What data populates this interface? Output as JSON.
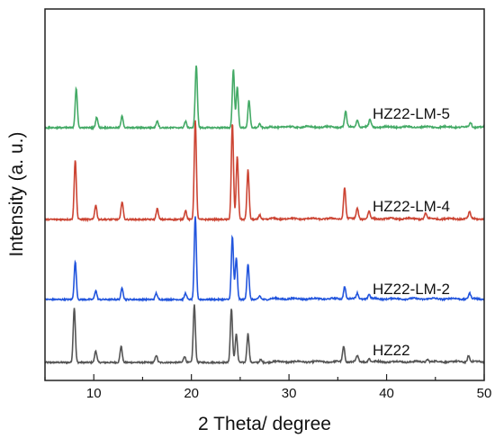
{
  "chart_data": {
    "type": "line",
    "title": "",
    "xlabel": "2 Theta/ degree",
    "ylabel": "Intensity (a. u.)",
    "xlim": [
      5,
      50
    ],
    "xticks": [
      10,
      20,
      30,
      40,
      50
    ],
    "y_tick_labels": false,
    "grid": false,
    "legend": "inline labels at right",
    "series": [
      {
        "name": "HZ22",
        "color": "#555555",
        "peaks": [
          [
            8.0,
            61
          ],
          [
            10.2,
            13
          ],
          [
            12.8,
            18
          ],
          [
            16.4,
            8
          ],
          [
            19.3,
            7
          ],
          [
            20.3,
            64
          ],
          [
            24.1,
            60
          ],
          [
            24.6,
            32
          ],
          [
            25.8,
            32
          ],
          [
            27.1,
            3
          ],
          [
            35.6,
            17
          ],
          [
            37.0,
            6
          ],
          [
            38.2,
            4
          ],
          [
            44.2,
            3
          ],
          [
            48.4,
            7
          ]
        ]
      },
      {
        "name": "HZ22-LM-2",
        "color": "#2255dd",
        "peaks": [
          [
            8.1,
            42
          ],
          [
            10.2,
            10
          ],
          [
            12.9,
            13
          ],
          [
            16.4,
            7
          ],
          [
            19.4,
            7
          ],
          [
            20.4,
            92
          ],
          [
            24.2,
            70
          ],
          [
            24.6,
            46
          ],
          [
            25.8,
            40
          ],
          [
            27.0,
            4
          ],
          [
            35.7,
            14
          ],
          [
            37.0,
            6
          ],
          [
            38.2,
            5
          ],
          [
            48.5,
            6
          ]
        ]
      },
      {
        "name": "HZ22-LM-4",
        "color": "#cc4433",
        "peaks": [
          [
            8.1,
            66
          ],
          [
            10.2,
            16
          ],
          [
            12.9,
            20
          ],
          [
            16.5,
            12
          ],
          [
            19.4,
            10
          ],
          [
            20.4,
            110
          ],
          [
            24.2,
            107
          ],
          [
            24.7,
            70
          ],
          [
            25.8,
            55
          ],
          [
            27.0,
            5
          ],
          [
            35.7,
            35
          ],
          [
            37.0,
            12
          ],
          [
            38.2,
            8
          ],
          [
            44.0,
            6
          ],
          [
            48.5,
            7
          ]
        ]
      },
      {
        "name": "HZ22-LM-5",
        "color": "#44aa66",
        "peaks": [
          [
            8.2,
            44
          ],
          [
            10.3,
            12
          ],
          [
            12.9,
            13
          ],
          [
            16.5,
            8
          ],
          [
            19.4,
            7
          ],
          [
            20.5,
            70
          ],
          [
            24.3,
            65
          ],
          [
            24.7,
            45
          ],
          [
            25.9,
            30
          ],
          [
            27.0,
            4
          ],
          [
            35.8,
            17
          ],
          [
            37.0,
            8
          ],
          [
            38.3,
            8
          ],
          [
            48.6,
            5
          ]
        ]
      }
    ]
  }
}
